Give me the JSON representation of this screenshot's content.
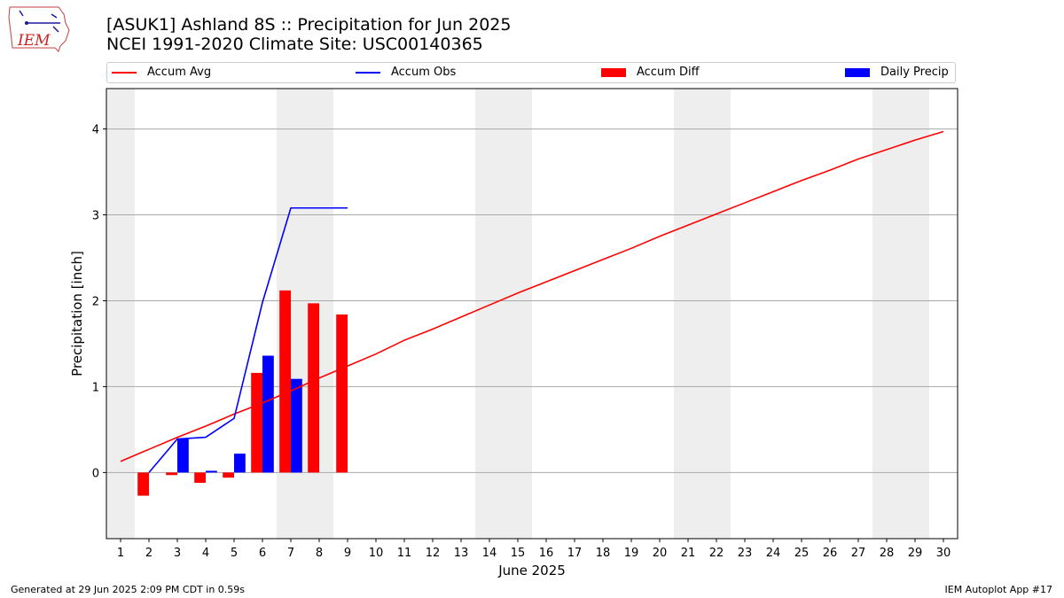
{
  "header": {
    "title_line1": "[ASUK1] Ashland 8S :: Precipitation for Jun 2025",
    "title_line2": "NCEI 1991-2020 Climate Site: USC00140365",
    "logo_text": "IEM"
  },
  "footer": {
    "left": "Generated at 29 Jun 2025 2:09 PM CDT in 0.59s",
    "right": "IEM Autoplot App #17"
  },
  "colors": {
    "avg": "#ff0000",
    "obs": "#0000ff",
    "diff": "#ff0000",
    "daily": "#0000ff",
    "weekend": "#eeeeee",
    "grid": "#aaaaaa"
  },
  "chart_data": {
    "type": "bar",
    "xlabel": "June 2025",
    "ylabel": "Precipitation [inch]",
    "xlim": [
      0.5,
      30.5
    ],
    "ylim": [
      -0.77,
      4.47
    ],
    "yticks": [
      0,
      1,
      2,
      3,
      4
    ],
    "xticks": [
      1,
      2,
      3,
      4,
      5,
      6,
      7,
      8,
      9,
      10,
      11,
      12,
      13,
      14,
      15,
      16,
      17,
      18,
      19,
      20,
      21,
      22,
      23,
      24,
      25,
      26,
      27,
      28,
      29,
      30
    ],
    "grid": "y",
    "legend_placement": "top",
    "weekend_days": [
      1,
      7,
      8,
      14,
      15,
      21,
      22,
      28,
      29
    ],
    "legend": [
      "Accum Avg",
      "Accum Obs",
      "Accum Diff",
      "Daily Precip"
    ],
    "series": [
      {
        "name": "Accum Avg",
        "kind": "line",
        "x": [
          1,
          2,
          3,
          4,
          5,
          6,
          7,
          8,
          9,
          10,
          11,
          12,
          13,
          14,
          15,
          16,
          17,
          18,
          19,
          20,
          21,
          22,
          23,
          24,
          25,
          26,
          27,
          28,
          29,
          30
        ],
        "values": [
          0.13,
          0.27,
          0.41,
          0.54,
          0.68,
          0.81,
          0.95,
          1.1,
          1.24,
          1.38,
          1.54,
          1.67,
          1.81,
          1.95,
          2.09,
          2.22,
          2.35,
          2.48,
          2.61,
          2.75,
          2.88,
          3.01,
          3.14,
          3.27,
          3.4,
          3.52,
          3.65,
          3.76,
          3.87,
          3.97
        ]
      },
      {
        "name": "Accum Obs",
        "kind": "line",
        "x": [
          2,
          3,
          4,
          5,
          6,
          7,
          8,
          9
        ],
        "values": [
          0.0,
          0.39,
          0.41,
          0.63,
          1.98,
          3.08,
          3.08,
          3.08
        ]
      },
      {
        "name": "Accum Diff",
        "kind": "bar",
        "x": [
          2,
          3,
          4,
          5,
          6,
          7,
          8,
          9
        ],
        "values": [
          -0.27,
          -0.03,
          -0.12,
          -0.06,
          1.16,
          2.12,
          1.97,
          1.84
        ]
      },
      {
        "name": "Daily Precip",
        "kind": "bar",
        "x": [
          3,
          4,
          5,
          6,
          7
        ],
        "values": [
          0.39,
          0.02,
          0.22,
          1.36,
          1.09
        ]
      }
    ]
  }
}
